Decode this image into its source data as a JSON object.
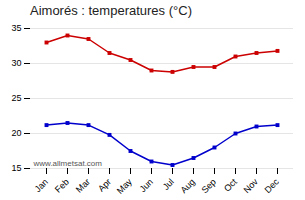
{
  "chart_data": {
    "type": "line",
    "title": "Aimorés : temperatures (°C)",
    "categories": [
      "Jan",
      "Feb",
      "Mar",
      "Apr",
      "May",
      "Jun",
      "Jul",
      "Aug",
      "Sep",
      "Oct",
      "Nov",
      "Dec"
    ],
    "series": [
      {
        "color": "#cc0000",
        "marker": "square",
        "values": [
          33.0,
          34.0,
          33.5,
          31.5,
          30.5,
          29.0,
          28.8,
          29.5,
          29.5,
          31.0,
          31.5,
          31.8
        ]
      },
      {
        "color": "#0000cc",
        "marker": "square",
        "values": [
          21.2,
          21.5,
          21.2,
          19.8,
          17.5,
          16.0,
          15.5,
          16.5,
          18.0,
          20.0,
          21.0,
          21.2
        ]
      }
    ],
    "ylim": [
      15,
      35
    ],
    "yticks": [
      15,
      20,
      25,
      30,
      35
    ],
    "grid": true,
    "annotations": [
      "www.allmetsat.com"
    ]
  }
}
